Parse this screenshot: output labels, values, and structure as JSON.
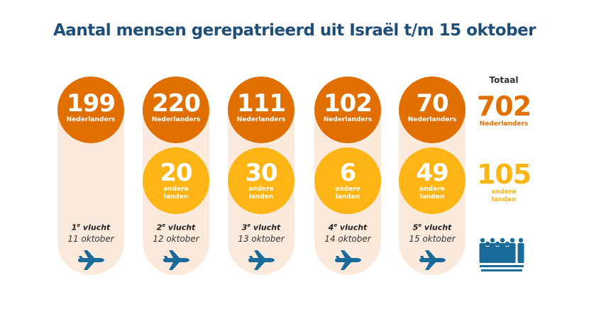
{
  "title": "Aantal mensen gerepatrieerd uit Israël t/m 15 oktober",
  "colors": {
    "nederlanders": "#e06f00",
    "andere_landen": "#fdb515",
    "pill": "#fbe9dc",
    "title": "#1f4e79",
    "icon": "#1a6a9a"
  },
  "flights": [
    {
      "nl": "199",
      "nl_label": "Nederlanders",
      "other": null,
      "other_label": null,
      "ordinal": "1",
      "sup": "e",
      "flight_word": "vlucht",
      "date": "11 oktober",
      "icon": "airplane-icon"
    },
    {
      "nl": "220",
      "nl_label": "Nederlanders",
      "other": "20",
      "other_label": "andere landen",
      "ordinal": "2",
      "sup": "e",
      "flight_word": "vlucht",
      "date": "12 oktober",
      "icon": "airplane-icon"
    },
    {
      "nl": "111",
      "nl_label": "Nederlanders",
      "other": "30",
      "other_label": "andere landen",
      "ordinal": "3",
      "sup": "e",
      "flight_word": "vlucht",
      "date": "13 oktober",
      "icon": "airplane-icon"
    },
    {
      "nl": "102",
      "nl_label": "Nederlanders",
      "other": "6",
      "other_label": "andere landen",
      "ordinal": "4",
      "sup": "e",
      "flight_word": "vlucht",
      "date": "14 oktober",
      "icon": "airplane-icon"
    },
    {
      "nl": "70",
      "nl_label": "Nederlanders",
      "other": "49",
      "other_label": "andere landen",
      "ordinal": "5",
      "sup": "e",
      "flight_word": "vlucht",
      "date": "15 oktober",
      "icon": "airplane-icon"
    }
  ],
  "totals": {
    "heading": "Totaal",
    "nl": "702",
    "nl_label": "Nederlanders",
    "other": "105",
    "other_label": "andere landen",
    "icon": "people-group-icon"
  }
}
